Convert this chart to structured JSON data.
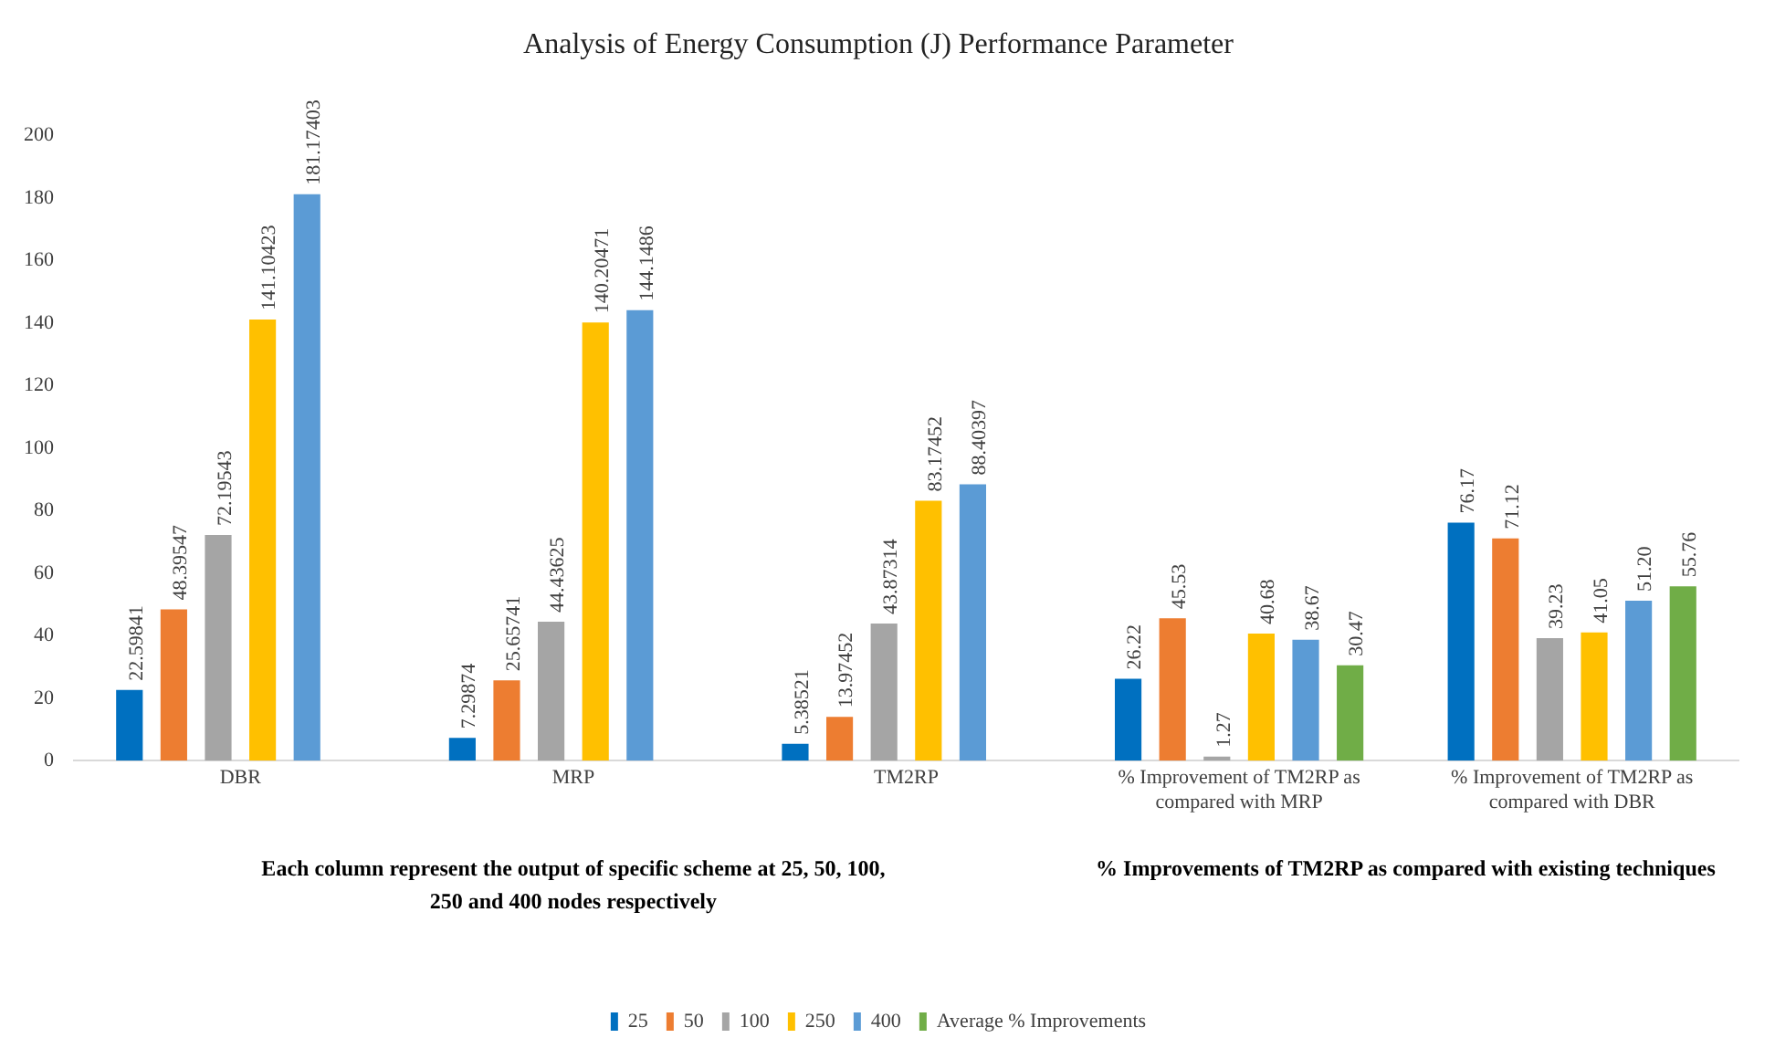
{
  "chart_data": {
    "type": "bar",
    "title": "Analysis of Energy Consumption (J) Performance Parameter",
    "categories": [
      "DBR",
      "MRP",
      "TM2RP",
      "% Improvement of TM2RP as compared with MRP",
      "% Improvement of TM2RP as compared with DBR"
    ],
    "series": [
      {
        "name": "25",
        "color": "#0070c0",
        "values": [
          22.59841,
          7.29874,
          5.38521,
          26.22,
          76.17
        ],
        "value_labels": [
          "22.59841",
          "7.29874",
          "5.38521",
          "26.22",
          "76.17"
        ]
      },
      {
        "name": "50",
        "color": "#ed7d31",
        "values": [
          48.39547,
          25.65741,
          13.97452,
          45.53,
          71.12
        ],
        "value_labels": [
          "48.39547",
          "25.65741",
          "13.97452",
          "45.53",
          "71.12"
        ]
      },
      {
        "name": "100",
        "color": "#a5a5a5",
        "values": [
          72.19543,
          44.43625,
          43.87314,
          1.27,
          39.23
        ],
        "value_labels": [
          "72.19543",
          "44.43625",
          "43.87314",
          "1.27",
          "39.23"
        ]
      },
      {
        "name": "250",
        "color": "#ffc000",
        "values": [
          141.10423,
          140.20471,
          83.17452,
          40.68,
          41.05
        ],
        "value_labels": [
          "141.10423",
          "140.20471",
          "83.17452",
          "40.68",
          "41.05"
        ]
      },
      {
        "name": "400",
        "color": "#5b9bd5",
        "values": [
          181.17403,
          144.1486,
          88.40397,
          38.67,
          51.2
        ],
        "value_labels": [
          "181.17403",
          "144.1486",
          "88.40397",
          "38.67",
          "51.20"
        ]
      },
      {
        "name": "Average % Improvements",
        "color": "#70ad47",
        "values": [
          null,
          null,
          null,
          30.47,
          55.76
        ],
        "value_labels": [
          null,
          null,
          null,
          "30.47",
          "55.76"
        ]
      }
    ],
    "ylim": [
      0,
      200
    ],
    "yticks": [
      0,
      20,
      40,
      60,
      80,
      100,
      120,
      140,
      160,
      180,
      200
    ],
    "grid": false,
    "legend": "bottom",
    "annotations": [
      "Each column represent the output of specific scheme at 25, 50, 100, 250 and 400 nodes respectively",
      "% Improvements of TM2RP as compared with existing techniques"
    ]
  }
}
